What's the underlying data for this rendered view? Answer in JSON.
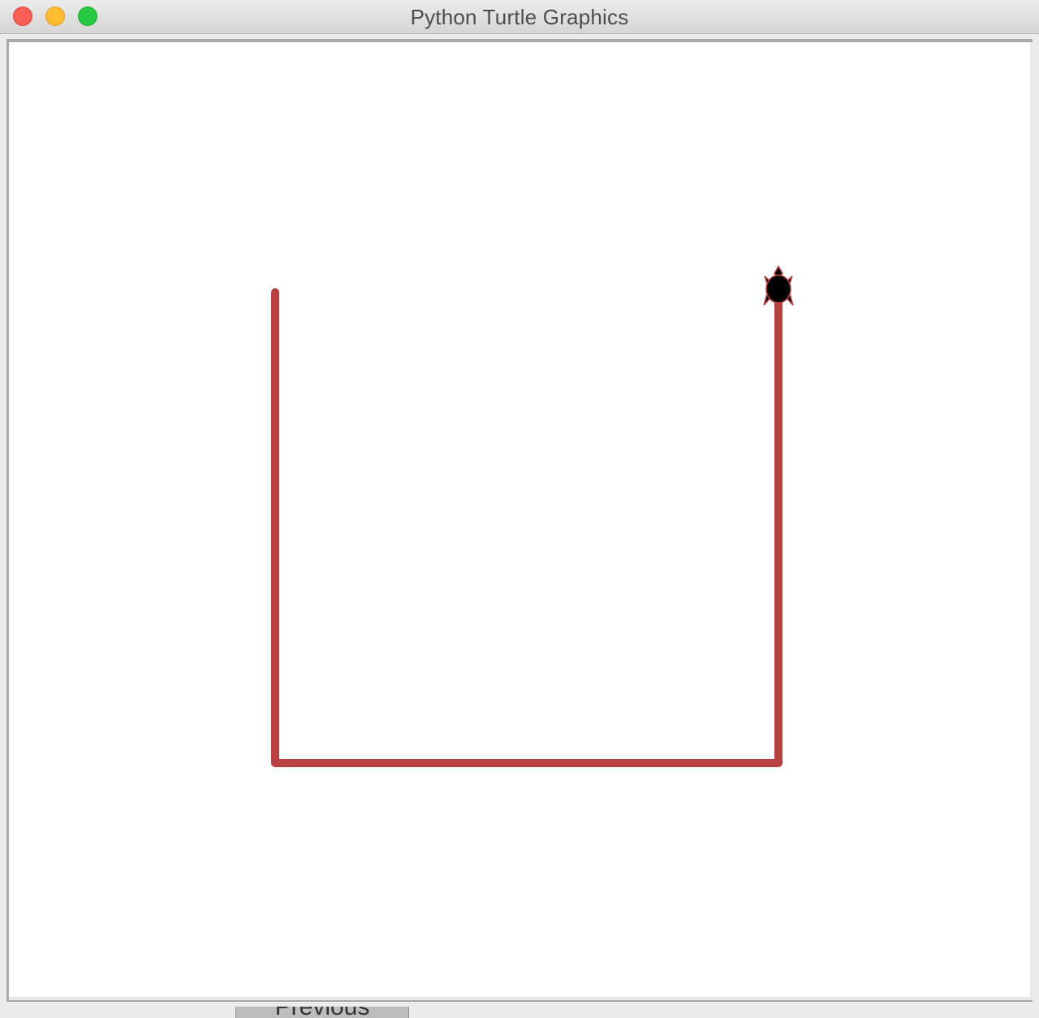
{
  "window": {
    "title": "Python Turtle Graphics",
    "buttons": {
      "close": "close-button",
      "minimize": "minimize-button",
      "maximize": "maximize-button"
    }
  },
  "drawing": {
    "pen_color": "#b84040",
    "turtle_fill": "#000000",
    "turtle_outline": "#b84040",
    "background": "#ffffff",
    "icon": "turtle-icon"
  },
  "background_window": {
    "partial_tab_label": "Previous"
  }
}
